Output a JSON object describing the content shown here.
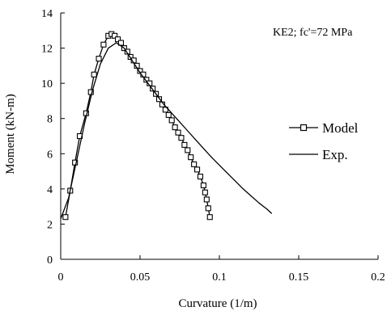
{
  "chart_data": {
    "type": "line",
    "annotation": "KE2; fc'=72 MPa",
    "xlabel": "Curvature (1/m)",
    "ylabel": "Moment (kN-m)",
    "xlim": [
      0,
      0.2
    ],
    "ylim": [
      0,
      14
    ],
    "x_ticks": [
      0,
      0.05,
      0.1,
      0.15,
      0.2
    ],
    "x_tick_labels": [
      "0",
      "0.05",
      "0.1",
      "0.15",
      "0.2"
    ],
    "y_ticks": [
      0,
      2,
      4,
      6,
      8,
      10,
      12,
      14
    ],
    "y_tick_labels": [
      "0",
      "2",
      "4",
      "6",
      "8",
      "10",
      "12",
      "14"
    ],
    "grid": false,
    "legend_position": "right",
    "series": [
      {
        "name": "Model",
        "marker": "square",
        "color": "#000000",
        "points": [
          [
            0.003,
            2.4
          ],
          [
            0.006,
            3.9
          ],
          [
            0.009,
            5.5
          ],
          [
            0.012,
            7.0
          ],
          [
            0.016,
            8.3
          ],
          [
            0.019,
            9.5
          ],
          [
            0.021,
            10.5
          ],
          [
            0.024,
            11.4
          ],
          [
            0.027,
            12.2
          ],
          [
            0.03,
            12.7
          ],
          [
            0.032,
            12.8
          ],
          [
            0.034,
            12.7
          ],
          [
            0.036,
            12.5
          ],
          [
            0.038,
            12.3
          ],
          [
            0.04,
            12.0
          ],
          [
            0.042,
            11.8
          ],
          [
            0.044,
            11.5
          ],
          [
            0.046,
            11.3
          ],
          [
            0.048,
            11.0
          ],
          [
            0.05,
            10.7
          ],
          [
            0.052,
            10.5
          ],
          [
            0.054,
            10.2
          ],
          [
            0.056,
            10.0
          ],
          [
            0.058,
            9.7
          ],
          [
            0.06,
            9.4
          ],
          [
            0.062,
            9.1
          ],
          [
            0.064,
            8.8
          ],
          [
            0.066,
            8.5
          ],
          [
            0.068,
            8.2
          ],
          [
            0.07,
            7.9
          ],
          [
            0.072,
            7.5
          ],
          [
            0.074,
            7.2
          ],
          [
            0.076,
            6.9
          ],
          [
            0.078,
            6.5
          ],
          [
            0.08,
            6.2
          ],
          [
            0.082,
            5.8
          ],
          [
            0.084,
            5.4
          ],
          [
            0.086,
            5.1
          ],
          [
            0.088,
            4.7
          ],
          [
            0.09,
            4.2
          ],
          [
            0.091,
            3.8
          ],
          [
            0.092,
            3.4
          ],
          [
            0.093,
            2.9
          ],
          [
            0.094,
            2.4
          ]
        ]
      },
      {
        "name": "Exp.",
        "marker": "none",
        "color": "#000000",
        "points": [
          [
            0.0,
            2.3
          ],
          [
            0.005,
            3.5
          ],
          [
            0.01,
            5.6
          ],
          [
            0.015,
            7.7
          ],
          [
            0.02,
            9.6
          ],
          [
            0.025,
            11.1
          ],
          [
            0.03,
            12.0
          ],
          [
            0.035,
            12.3
          ],
          [
            0.04,
            12.0
          ],
          [
            0.045,
            11.3
          ],
          [
            0.05,
            10.6
          ],
          [
            0.055,
            10.0
          ],
          [
            0.06,
            9.4
          ],
          [
            0.065,
            8.8
          ],
          [
            0.07,
            8.3
          ],
          [
            0.075,
            7.8
          ],
          [
            0.08,
            7.3
          ],
          [
            0.085,
            6.8
          ],
          [
            0.09,
            6.3
          ],
          [
            0.095,
            5.8
          ],
          [
            0.1,
            5.35
          ],
          [
            0.105,
            4.9
          ],
          [
            0.11,
            4.45
          ],
          [
            0.115,
            4.0
          ],
          [
            0.12,
            3.6
          ],
          [
            0.125,
            3.2
          ],
          [
            0.13,
            2.85
          ],
          [
            0.133,
            2.6
          ]
        ]
      }
    ]
  }
}
